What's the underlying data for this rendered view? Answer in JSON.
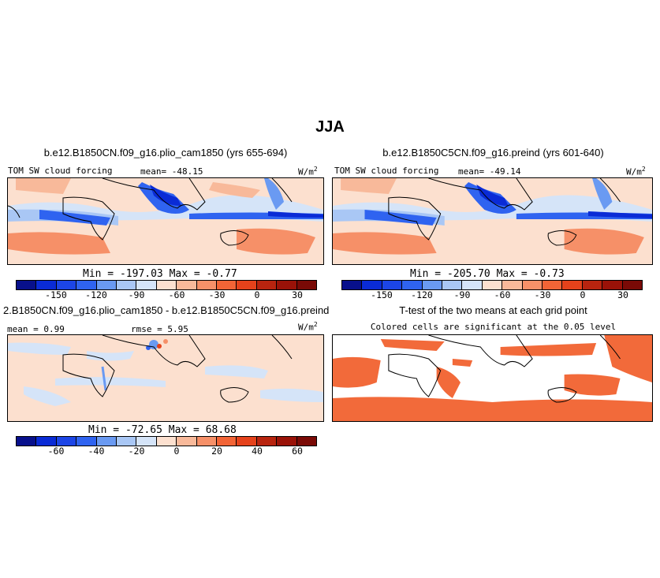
{
  "season": "JJA",
  "colors": {
    "levels_main": [
      "#08108c",
      "#0a2bd6",
      "#2f63f0",
      "#6a9af2",
      "#a9c7f5",
      "#d5e4f8",
      "#fce0cf",
      "#f8b99a",
      "#f69068",
      "#f26436",
      "#e5421b",
      "#b8240f",
      "#7a0a06"
    ],
    "diff": [
      "#08108c",
      "#0a2bd6",
      "#2f63f0",
      "#6a9af2",
      "#a9c7f5",
      "#d5e4f8",
      "#fce0cf",
      "#f8b99a",
      "#f69068",
      "#f26436",
      "#e5421b",
      "#b8240f",
      "#7a0a06"
    ],
    "sig": "#f26a3a",
    "land": "#000000"
  },
  "panels": {
    "p1": {
      "title": "b.e12.B1850CN.f09_g16.plio_cam1850 (yrs 655-694)",
      "var": "TOM SW cloud forcing",
      "mean": "mean= -48.15",
      "units": "W/m",
      "units_sup": "2",
      "minmax": "Min = -197.03 Max =   -0.77",
      "ticks": [
        "-150",
        "-120",
        "-90",
        "-60",
        "-30",
        "0",
        "30"
      ]
    },
    "p2": {
      "title": "b.e12.B1850C5CN.f09_g16.preind (yrs 601-640)",
      "var": "TOM SW cloud forcing",
      "mean": "mean= -49.14",
      "units": "W/m",
      "units_sup": "2",
      "minmax": "Min = -205.70 Max =   -0.73",
      "ticks": [
        "-150",
        "-120",
        "-90",
        "-60",
        "-30",
        "0",
        "30"
      ]
    },
    "p3": {
      "title": "2.B1850CN.f09_g16.plio_cam1850 - b.e12.B1850C5CN.f09_g16.preind",
      "mean": "mean =   0.99",
      "rmse": "rmse =   5.95",
      "units": "W/m",
      "units_sup": "2",
      "minmax": "Min = -72.65 Max =  68.68",
      "ticks": [
        "-60",
        "-40",
        "-20",
        "0",
        "20",
        "40",
        "60"
      ]
    },
    "p4": {
      "title": "T-test of the two means at each grid point",
      "subtitle": "Colored cells are significant at the 0.05 level"
    }
  }
}
